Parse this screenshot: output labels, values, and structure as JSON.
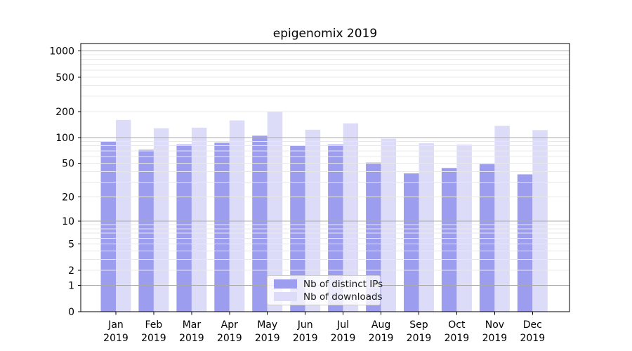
{
  "title": "epigenomix 2019",
  "chart_data": {
    "type": "bar",
    "title": "epigenomix 2019",
    "yscale": "log1p",
    "ylim": [
      0,
      1217
    ],
    "y_ticks": [
      1000,
      500,
      200,
      100,
      50,
      20,
      10,
      5,
      2,
      1,
      0
    ],
    "major_gridlines": [
      1,
      10,
      100,
      1000
    ],
    "grid": "major+minor, drawn over bars",
    "legend_position": "lower center",
    "categories": [
      "Jan 2019",
      "Feb 2019",
      "Mar 2019",
      "Apr 2019",
      "May 2019",
      "Jun 2019",
      "Jul 2019",
      "Aug 2019",
      "Sep 2019",
      "Oct 2019",
      "Nov 2019",
      "Dec 2019"
    ],
    "series": [
      {
        "name": "Nb of distinct IPs",
        "color": "#9d9df0",
        "values": [
          90,
          72,
          83,
          87,
          105,
          81,
          83,
          51,
          38,
          44,
          49,
          37
        ]
      },
      {
        "name": "Nb of downloads",
        "color": "#dcdcf8",
        "values": [
          160,
          128,
          130,
          158,
          199,
          123,
          146,
          97,
          86,
          83,
          137,
          122
        ]
      }
    ],
    "colors": {
      "axis": "#000000",
      "grid_major": "#aaaaaa",
      "grid_minor": "#e8e8e8",
      "tick_text": "#000000",
      "legend_border": "#cccccc",
      "legend_text": "#1a1a1a"
    }
  }
}
